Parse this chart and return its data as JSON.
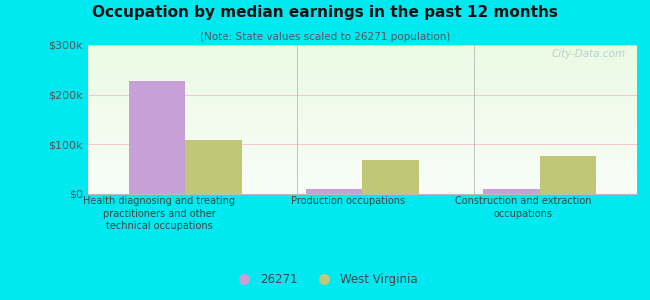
{
  "title": "Occupation by median earnings in the past 12 months",
  "subtitle": "(Note: State values scaled to 26271 population)",
  "categories": [
    "Health diagnosing and treating\npractitioners and other\ntechnical occupations",
    "Production occupations",
    "Construction and extraction\noccupations"
  ],
  "values_26271": [
    228000,
    10000,
    10000
  ],
  "values_wv": [
    108000,
    68000,
    75000
  ],
  "color_26271": "#c8a0d8",
  "color_wv": "#c0c878",
  "ylim": [
    0,
    300000
  ],
  "yticks": [
    0,
    100000,
    200000,
    300000
  ],
  "ytick_labels": [
    "$0",
    "$100k",
    "$200k",
    "$300k"
  ],
  "background_outer": "#00e8f0",
  "legend_labels": [
    "26271",
    "West Virginia"
  ],
  "watermark": "City-Data.com",
  "bar_width": 0.32,
  "group_positions": [
    0,
    1,
    2
  ],
  "gridline_color": "#ffaabb",
  "spine_color": "#bbbbbb"
}
